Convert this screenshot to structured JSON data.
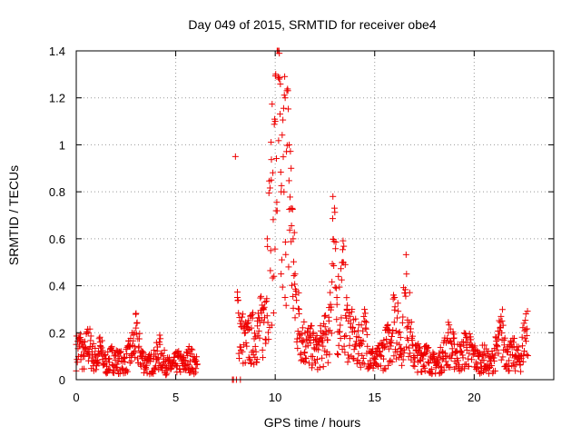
{
  "chart_data": {
    "type": "scatter",
    "title": "Day 049 of 2015, SRMTID for receiver obe4",
    "xlabel": "GPS time / hours",
    "ylabel": "SRMTID / TECUs",
    "xlim": [
      0,
      24
    ],
    "ylim": [
      0,
      1.4
    ],
    "x_ticks": [
      0,
      5,
      10,
      15,
      20
    ],
    "x_tick_labels": [
      "0",
      "5",
      "10",
      "15",
      "20"
    ],
    "y_ticks": [
      0,
      0.2,
      0.4,
      0.6,
      0.8,
      1.0,
      1.2,
      1.4
    ],
    "y_tick_labels": [
      "0",
      "0.2",
      "0.4",
      "0.6",
      "0.8",
      "1",
      "1.2",
      "1.4"
    ],
    "grid": true,
    "marker": "+",
    "color": "#ee0000",
    "series": [
      {
        "name": "SRMTID",
        "description": "approximate trace of the plotted scatter (representative points)",
        "x": [
          0.0,
          0.2,
          0.4,
          0.6,
          0.8,
          1.0,
          1.2,
          1.5,
          1.8,
          2.1,
          2.4,
          2.7,
          3.0,
          3.3,
          3.6,
          3.9,
          4.2,
          4.5,
          4.8,
          5.1,
          5.4,
          5.7,
          6.0,
          7.9,
          8.0,
          8.1,
          8.3,
          8.5,
          8.8,
          9.1,
          9.4,
          9.6,
          9.8,
          10.0,
          10.1,
          10.2,
          10.3,
          10.5,
          10.7,
          10.8,
          10.9,
          11.0,
          11.2,
          11.5,
          11.8,
          12.1,
          12.4,
          12.7,
          12.9,
          13.1,
          13.4,
          13.6,
          13.9,
          14.2,
          14.5,
          14.8,
          15.1,
          15.4,
          15.7,
          16.0,
          16.3,
          16.6,
          16.9,
          17.2,
          17.5,
          17.8,
          18.1,
          18.4,
          18.7,
          19.0,
          19.3,
          19.6,
          19.9,
          20.2,
          20.5,
          20.8,
          21.1,
          21.4,
          21.7,
          22.0,
          22.3,
          22.6
        ],
        "y": [
          0.15,
          0.18,
          0.12,
          0.2,
          0.14,
          0.1,
          0.16,
          0.08,
          0.12,
          0.1,
          0.09,
          0.14,
          0.22,
          0.12,
          0.08,
          0.1,
          0.15,
          0.08,
          0.07,
          0.1,
          0.08,
          0.12,
          0.08,
          0.0,
          0.95,
          0.35,
          0.25,
          0.2,
          0.22,
          0.25,
          0.3,
          0.6,
          0.85,
          1.1,
          1.4,
          1.28,
          0.8,
          1.2,
          1.0,
          0.9,
          0.6,
          0.45,
          0.3,
          0.2,
          0.18,
          0.15,
          0.2,
          0.25,
          0.78,
          0.35,
          0.5,
          0.3,
          0.22,
          0.18,
          0.25,
          0.12,
          0.1,
          0.15,
          0.2,
          0.35,
          0.18,
          0.45,
          0.15,
          0.12,
          0.14,
          0.1,
          0.08,
          0.12,
          0.2,
          0.15,
          0.12,
          0.18,
          0.14,
          0.1,
          0.12,
          0.08,
          0.15,
          0.25,
          0.12,
          0.14,
          0.1,
          0.28
        ]
      }
    ]
  }
}
